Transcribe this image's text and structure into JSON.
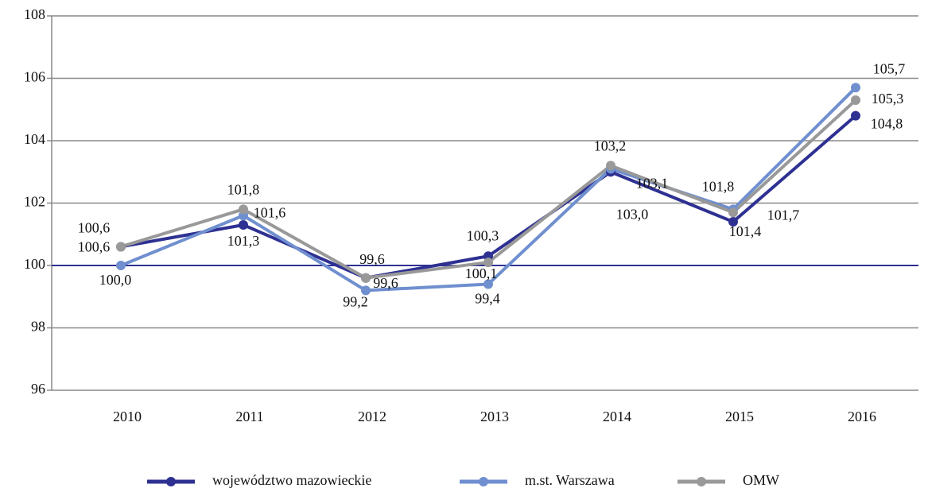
{
  "chart_data": {
    "type": "line",
    "categories": [
      "2010",
      "2011",
      "2012",
      "2013",
      "2014",
      "2015",
      "2016"
    ],
    "series": [
      {
        "name": "województwo mazowieckie",
        "color": "#2e3192",
        "values": [
          100.6,
          101.3,
          99.6,
          100.3,
          103.0,
          101.4,
          104.8
        ],
        "value_labels": [
          "100,6",
          "101,3",
          "99,6",
          "100,3",
          "103,0",
          "101,4",
          "104,8"
        ]
      },
      {
        "name": "m.st. Warszawa",
        "color": "#6f8fcf",
        "values": [
          100.0,
          101.6,
          99.2,
          99.4,
          103.1,
          101.8,
          105.7
        ],
        "value_labels": [
          "100,0",
          "101,6",
          "99,2",
          "99,4",
          "103,1",
          "101,8",
          "105,7"
        ]
      },
      {
        "name": "OMW",
        "color": "#999999",
        "values": [
          100.6,
          101.8,
          99.6,
          100.1,
          103.2,
          101.7,
          105.3
        ],
        "value_labels": [
          "100,6",
          "101,8",
          "99,6",
          "100,1",
          "103,2",
          "101,7",
          "105,3"
        ]
      }
    ],
    "ylim": [
      96,
      108
    ],
    "yticks": [
      96,
      98,
      100,
      102,
      104,
      106,
      108
    ],
    "grid": true,
    "reference_line": {
      "value": 100,
      "color": "#2e3192"
    },
    "legend": "bottom"
  }
}
